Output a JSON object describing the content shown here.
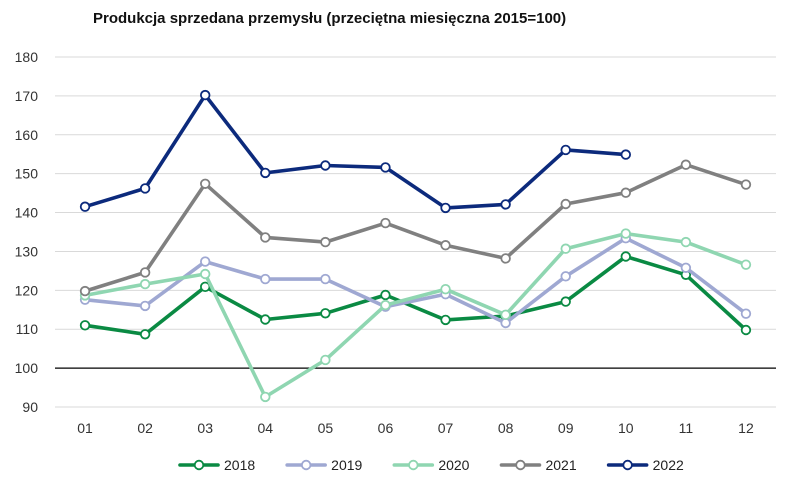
{
  "chart_data": {
    "type": "line",
    "title": "Produkcja sprzedana przemysłu (przeciętna miesięczna 2015=100)",
    "xlabel": "",
    "ylabel": "",
    "categories": [
      "01",
      "02",
      "03",
      "04",
      "05",
      "06",
      "07",
      "08",
      "09",
      "10",
      "11",
      "12"
    ],
    "ylim": [
      90,
      180
    ],
    "yticks": [
      90,
      100,
      110,
      120,
      130,
      140,
      150,
      160,
      170,
      180
    ],
    "reference_line": 100,
    "grid": true,
    "legend_position": "bottom",
    "series": [
      {
        "name": "2018",
        "color": "#0a8a43",
        "values": [
          111.0,
          108.7,
          120.9,
          112.5,
          114.1,
          118.8,
          112.4,
          113.4,
          117.1,
          128.7,
          124.0,
          109.8
        ]
      },
      {
        "name": "2019",
        "color": "#9fa8d2",
        "values": [
          117.6,
          116.0,
          127.4,
          122.9,
          122.9,
          115.8,
          119.0,
          111.6,
          123.6,
          133.4,
          125.8,
          114.0
        ]
      },
      {
        "name": "2020",
        "color": "#8fd6b1",
        "values": [
          118.7,
          121.6,
          124.2,
          92.6,
          102.1,
          116.2,
          120.3,
          113.7,
          130.7,
          134.6,
          132.4,
          126.6
        ]
      },
      {
        "name": "2021",
        "color": "#808080",
        "values": [
          119.8,
          124.6,
          147.4,
          133.6,
          132.4,
          137.3,
          131.6,
          128.2,
          142.2,
          145.1,
          152.3,
          147.2
        ]
      },
      {
        "name": "2022",
        "color": "#0c2a7c",
        "values": [
          141.5,
          146.2,
          170.2,
          150.2,
          152.1,
          151.6,
          141.2,
          142.1,
          156.1,
          154.9,
          null,
          null
        ]
      }
    ]
  }
}
